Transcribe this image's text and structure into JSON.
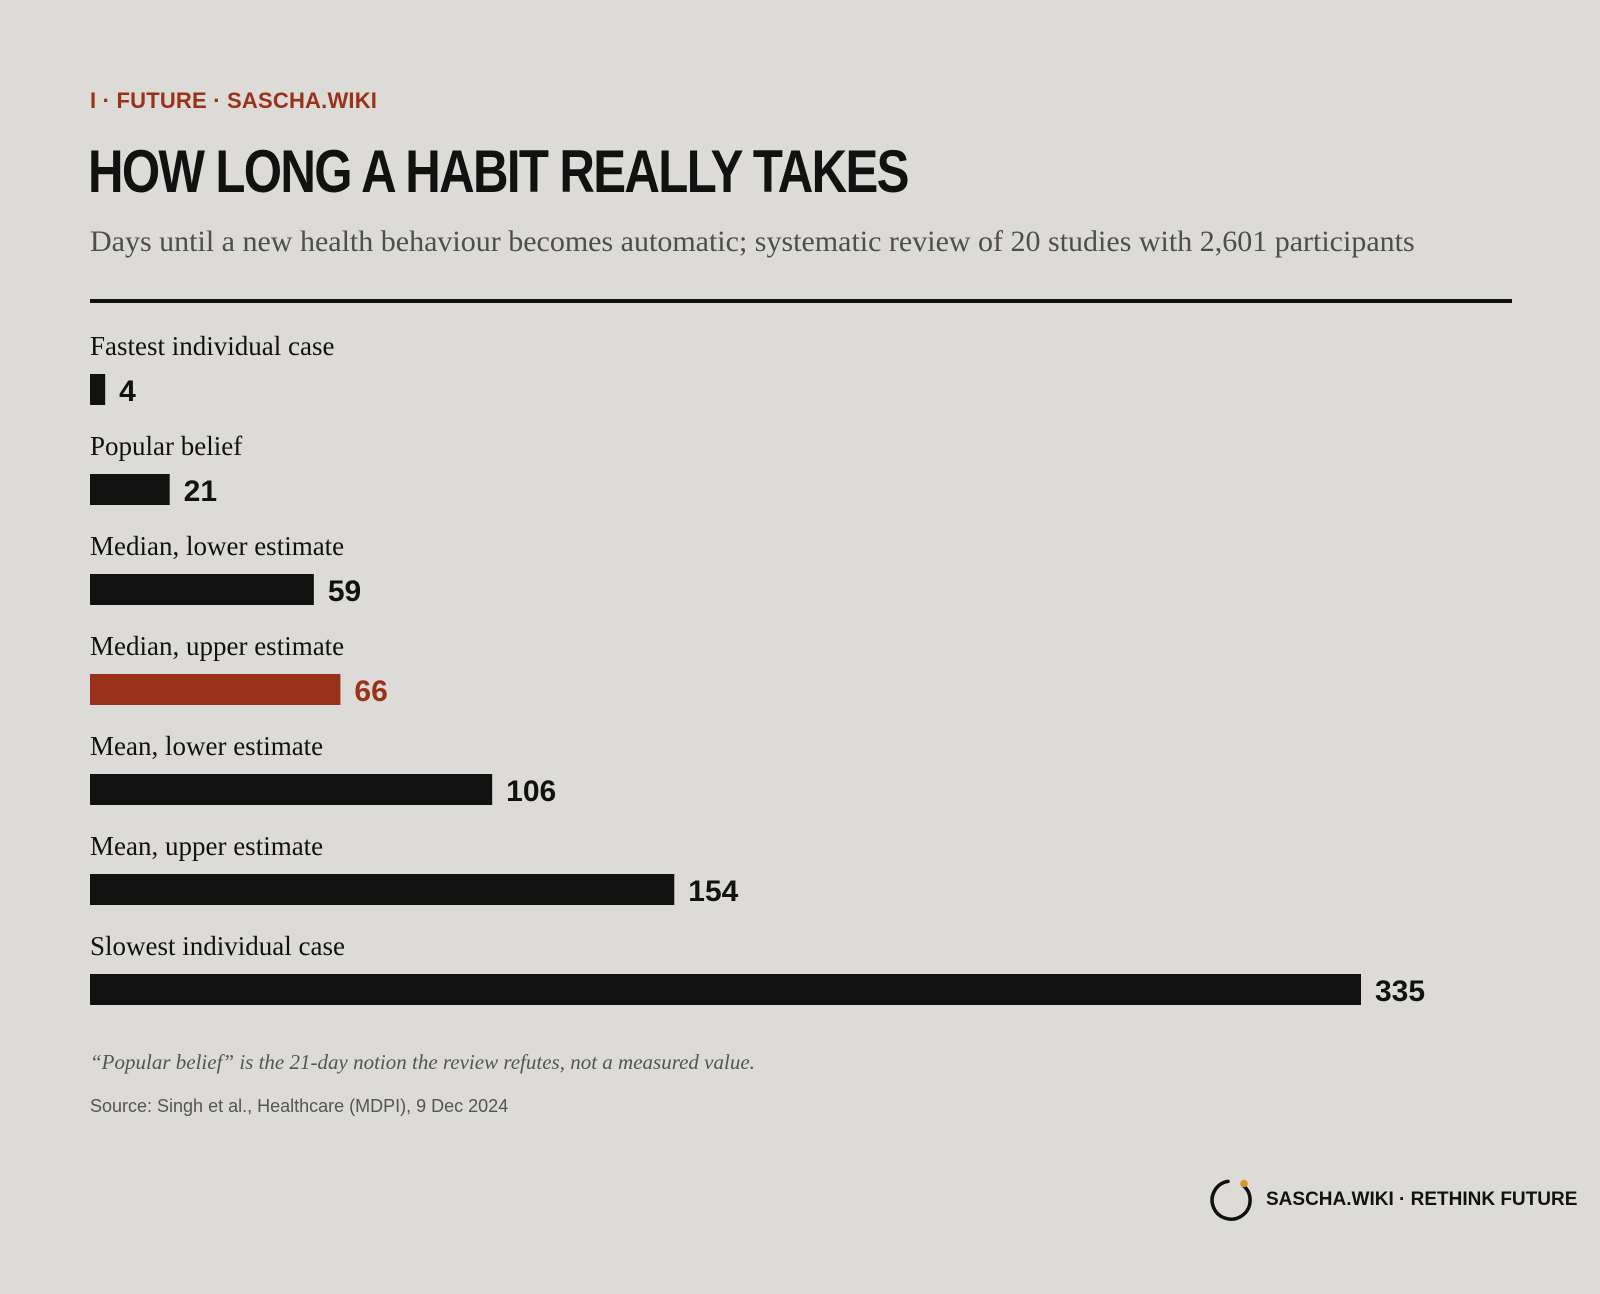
{
  "header": {
    "kicker": "I · FUTURE · SASCHA.WIKI",
    "title": "HOW LONG A HABIT REALLY TAKES",
    "subtitle": "Days until a new health behaviour becomes automatic; systematic review of 20 studies with 2,601 participants"
  },
  "chart_data": {
    "type": "bar",
    "orientation": "horizontal",
    "title": "HOW LONG A HABIT REALLY TAKES",
    "subtitle": "Days until a new health behaviour becomes automatic; systematic review of 20 studies with 2,601 participants",
    "xlabel": "",
    "ylabel": "",
    "categories": [
      "Fastest individual case",
      "Popular belief",
      "Median, lower estimate",
      "Median, upper estimate",
      "Mean, lower estimate",
      "Mean, upper estimate",
      "Slowest individual case"
    ],
    "values": [
      4,
      21,
      59,
      66,
      106,
      154,
      335
    ],
    "highlight_index": 3,
    "xlim": [
      0,
      335
    ],
    "grid": false,
    "legend": "none",
    "colors": {
      "bar": "#111111",
      "highlight": "#9a3219"
    }
  },
  "footer": {
    "note": "“Popular belief” is the 21-day notion the review refutes, not a measured value.",
    "source": "Source: Singh et al., Healthcare (MDPI), 9 Dec 2024",
    "brand": "SASCHA.WIKI · RETHINK FUTURE"
  },
  "colors": {
    "background": "#dcdbd7",
    "text": "#111111",
    "accent": "#9a3219",
    "muted": "#555555",
    "logo_dot": "#d9942a"
  }
}
